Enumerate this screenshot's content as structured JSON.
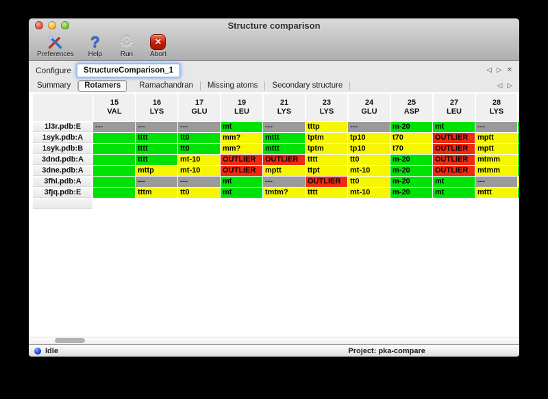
{
  "window": {
    "title": "Structure comparison"
  },
  "toolbar": {
    "items": [
      {
        "label": "Preferences",
        "icon": "preferences-tools-icon"
      },
      {
        "label": "Help",
        "icon": "help-question-icon"
      },
      {
        "label": "Run",
        "icon": "run-gear-icon"
      },
      {
        "label": "Abort",
        "icon": "abort-stop-icon"
      }
    ]
  },
  "configure": {
    "label": "Configure",
    "field_value": "StructureComparison_1"
  },
  "pane_nav": {
    "prev": "◁",
    "next": "▷",
    "close": "✕"
  },
  "tabs": {
    "items": [
      {
        "label": "Summary",
        "selected": false
      },
      {
        "label": "Rotamers",
        "selected": true
      },
      {
        "label": "Ramachandran",
        "selected": false
      },
      {
        "label": "Missing atoms",
        "selected": false
      },
      {
        "label": "Secondary structure",
        "selected": false
      }
    ]
  },
  "colors": {
    "green": "#00e206",
    "yellow": "#f6f600",
    "red": "#ee2a12",
    "gray": "#9a9a9a"
  },
  "table": {
    "columns": [
      {
        "num": "15",
        "res": "VAL"
      },
      {
        "num": "16",
        "res": "LYS"
      },
      {
        "num": "17",
        "res": "GLU"
      },
      {
        "num": "19",
        "res": "LEU"
      },
      {
        "num": "21",
        "res": "LYS"
      },
      {
        "num": "23",
        "res": "LYS"
      },
      {
        "num": "24",
        "res": "GLU"
      },
      {
        "num": "25",
        "res": "ASP"
      },
      {
        "num": "27",
        "res": "LEU"
      },
      {
        "num": "28",
        "res": "LYS"
      }
    ],
    "rows": [
      {
        "label": "1l3r.pdb:E",
        "cells": [
          {
            "text": "---",
            "color": "gray"
          },
          {
            "text": "---",
            "color": "gray"
          },
          {
            "text": "---",
            "color": "gray"
          },
          {
            "text": "mt",
            "color": "green"
          },
          {
            "text": "---",
            "color": "gray"
          },
          {
            "text": "tttp",
            "color": "yellow"
          },
          {
            "text": "---",
            "color": "gray"
          },
          {
            "text": "m-20",
            "color": "green"
          },
          {
            "text": "mt",
            "color": "green"
          },
          {
            "text": "---",
            "color": "gray"
          }
        ],
        "edge": "green"
      },
      {
        "label": "1syk.pdb:A",
        "cells": [
          {
            "text": "",
            "color": "green"
          },
          {
            "text": "tttt",
            "color": "green"
          },
          {
            "text": "tt0",
            "color": "green"
          },
          {
            "text": "mm?",
            "color": "yellow"
          },
          {
            "text": "mttt",
            "color": "green"
          },
          {
            "text": "tptm",
            "color": "yellow"
          },
          {
            "text": "tp10",
            "color": "yellow"
          },
          {
            "text": "t70",
            "color": "yellow"
          },
          {
            "text": "OUTLIER",
            "color": "red"
          },
          {
            "text": "mptt",
            "color": "yellow"
          }
        ],
        "edge": "green"
      },
      {
        "label": "1syk.pdb:B",
        "cells": [
          {
            "text": "",
            "color": "green"
          },
          {
            "text": "tttt",
            "color": "green"
          },
          {
            "text": "tt0",
            "color": "green"
          },
          {
            "text": "mm?",
            "color": "yellow"
          },
          {
            "text": "mttt",
            "color": "green"
          },
          {
            "text": "tptm",
            "color": "yellow"
          },
          {
            "text": "tp10",
            "color": "yellow"
          },
          {
            "text": "t70",
            "color": "yellow"
          },
          {
            "text": "OUTLIER",
            "color": "red"
          },
          {
            "text": "mptt",
            "color": "yellow"
          }
        ],
        "edge": "green"
      },
      {
        "label": "3dnd.pdb:A",
        "cells": [
          {
            "text": "",
            "color": "green"
          },
          {
            "text": "tttt",
            "color": "green"
          },
          {
            "text": "mt-10",
            "color": "yellow"
          },
          {
            "text": "OUTLIER",
            "color": "red"
          },
          {
            "text": "OUTLIER",
            "color": "red"
          },
          {
            "text": "tttt",
            "color": "yellow"
          },
          {
            "text": "tt0",
            "color": "yellow"
          },
          {
            "text": "m-20",
            "color": "green"
          },
          {
            "text": "OUTLIER",
            "color": "red"
          },
          {
            "text": "mtmm",
            "color": "yellow"
          }
        ],
        "edge": "green"
      },
      {
        "label": "3dne.pdb:A",
        "cells": [
          {
            "text": "",
            "color": "green"
          },
          {
            "text": "mttp",
            "color": "yellow"
          },
          {
            "text": "mt-10",
            "color": "yellow"
          },
          {
            "text": "OUTLIER",
            "color": "red"
          },
          {
            "text": "mptt",
            "color": "yellow"
          },
          {
            "text": "ttpt",
            "color": "yellow"
          },
          {
            "text": "mt-10",
            "color": "yellow"
          },
          {
            "text": "m-20",
            "color": "green"
          },
          {
            "text": "OUTLIER",
            "color": "red"
          },
          {
            "text": "mtmm",
            "color": "yellow"
          }
        ],
        "edge": "green"
      },
      {
        "label": "3fhi.pdb:A",
        "cells": [
          {
            "text": "",
            "color": "green"
          },
          {
            "text": "---",
            "color": "gray"
          },
          {
            "text": "---",
            "color": "gray"
          },
          {
            "text": "mt",
            "color": "green"
          },
          {
            "text": "---",
            "color": "gray"
          },
          {
            "text": "OUTLIER",
            "color": "red"
          },
          {
            "text": "tt0",
            "color": "yellow"
          },
          {
            "text": "m-20",
            "color": "green"
          },
          {
            "text": "mt",
            "color": "green"
          },
          {
            "text": "---",
            "color": "gray"
          }
        ],
        "edge": "yellow"
      },
      {
        "label": "3fjq.pdb:E",
        "cells": [
          {
            "text": "",
            "color": "green"
          },
          {
            "text": "tttm",
            "color": "yellow"
          },
          {
            "text": "tt0",
            "color": "yellow"
          },
          {
            "text": "mt",
            "color": "green"
          },
          {
            "text": "tmtm?",
            "color": "yellow"
          },
          {
            "text": "tttt",
            "color": "yellow"
          },
          {
            "text": "mt-10",
            "color": "yellow"
          },
          {
            "text": "m-20",
            "color": "green"
          },
          {
            "text": "mt",
            "color": "green"
          },
          {
            "text": "mttt",
            "color": "yellow"
          }
        ],
        "edge": "green"
      }
    ]
  },
  "statusbar": {
    "status": "Idle",
    "project": "Project: pka-compare"
  }
}
